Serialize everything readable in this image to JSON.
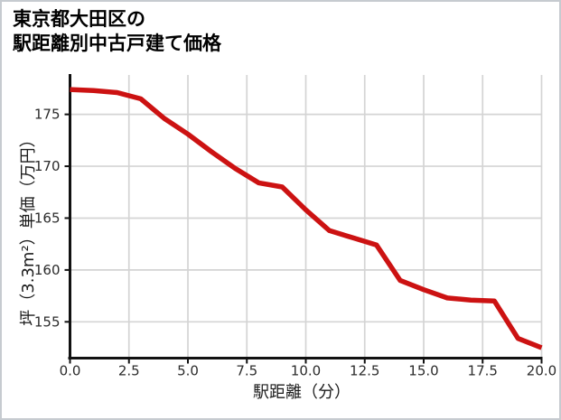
{
  "window": {
    "background_color": "#ffffff",
    "border_color": "#c6cbd0"
  },
  "title": {
    "line1": "東京都大田区の",
    "line2": "駅距離別中古戸建て価格"
  },
  "chart_data": {
    "type": "line",
    "title": "東京都大田区の駅距離別中古戸建て価格",
    "xlabel": "駅距離（分）",
    "ylabel": "坪（3.3m²）単価（万円）",
    "x": [
      0,
      1,
      2,
      3,
      4,
      5,
      6,
      7,
      8,
      9,
      10,
      11,
      12,
      13,
      14,
      15,
      16,
      17,
      18,
      19,
      20
    ],
    "y": [
      177.4,
      177.3,
      177.1,
      176.5,
      174.6,
      173.1,
      171.4,
      169.8,
      168.4,
      168.0,
      165.8,
      163.8,
      163.1,
      162.4,
      159.0,
      158.1,
      157.3,
      157.1,
      157.0,
      153.4,
      152.5
    ],
    "xticks": [
      0,
      2.5,
      5,
      7.5,
      10,
      12.5,
      15,
      17.5,
      20
    ],
    "x_tick_labels": [
      "0.0",
      "2.5",
      "5.0",
      "7.5",
      "10.0",
      "12.5",
      "15.0",
      "17.5",
      "20.0"
    ],
    "yticks": [
      155,
      160,
      165,
      170,
      175
    ],
    "y_tick_labels": [
      "155",
      "160",
      "165",
      "170",
      "175"
    ],
    "xlim": [
      0,
      20
    ],
    "ylim": [
      151.5,
      178.8
    ],
    "grid": true,
    "legend": false,
    "line_color": "#cc1212",
    "grid_color": "#d4d4d4",
    "spine_color": "#111111",
    "tick_label_color": "#2b2b2b"
  }
}
